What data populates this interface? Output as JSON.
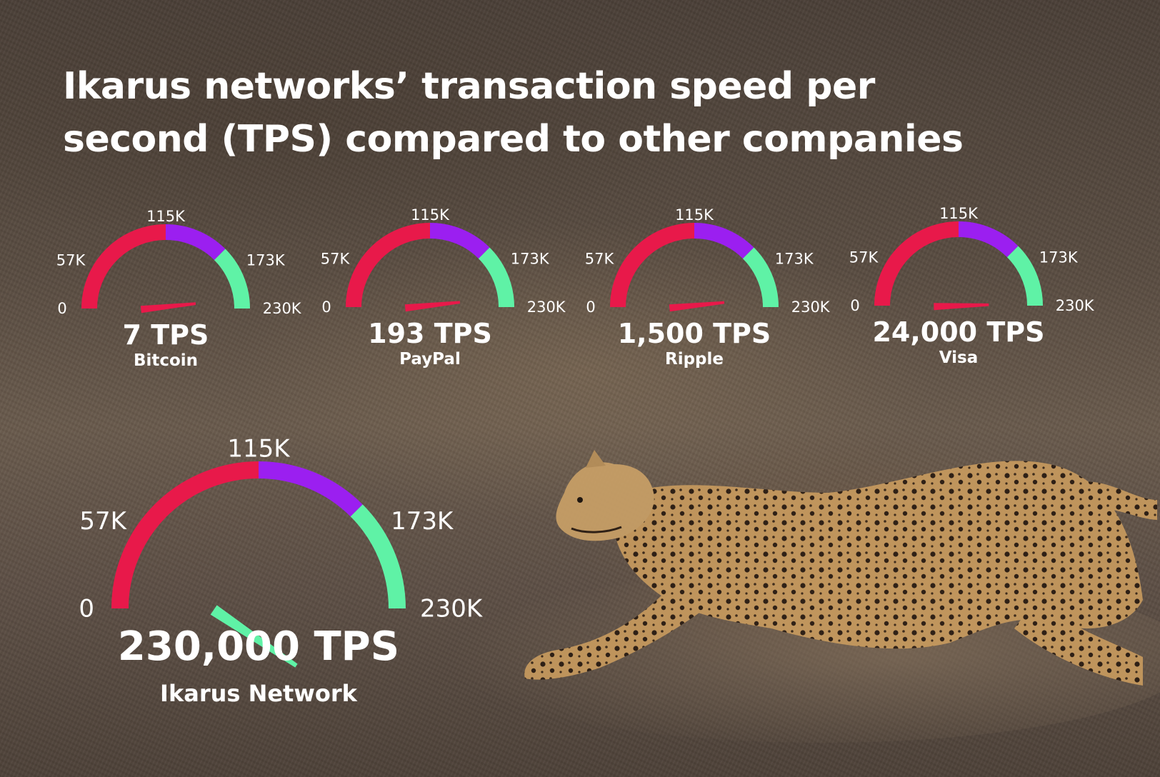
{
  "title_lines": [
    "Ikarus networks’ transaction speed per",
    "second (TPS) compared to other companies"
  ],
  "colors": {
    "red": "#e8194a",
    "purple": "#9b1ff0",
    "green": "#5ff2a6"
  },
  "chart_data": [
    {
      "type": "gauge",
      "name": "Bitcoin",
      "value": 7,
      "value_label": "7 TPS",
      "min": 0,
      "max": 230000,
      "tick_labels": [
        "0",
        "57K",
        "115K",
        "173K",
        "230K"
      ],
      "bands": [
        {
          "from": 0,
          "to": 115000,
          "color": "red"
        },
        {
          "from": 115000,
          "to": 172500,
          "color": "purple"
        },
        {
          "from": 172500,
          "to": 230000,
          "color": "green"
        }
      ]
    },
    {
      "type": "gauge",
      "name": "PayPal",
      "value": 193,
      "value_label": "193 TPS",
      "min": 0,
      "max": 230000,
      "tick_labels": [
        "0",
        "57K",
        "115K",
        "173K",
        "230K"
      ],
      "bands": [
        {
          "from": 0,
          "to": 115000,
          "color": "red"
        },
        {
          "from": 115000,
          "to": 172500,
          "color": "purple"
        },
        {
          "from": 172500,
          "to": 230000,
          "color": "green"
        }
      ]
    },
    {
      "type": "gauge",
      "name": "Ripple",
      "value": 1500,
      "value_label": "1,500 TPS",
      "min": 0,
      "max": 230000,
      "tick_labels": [
        "0",
        "57K",
        "115K",
        "173K",
        "230K"
      ],
      "bands": [
        {
          "from": 0,
          "to": 115000,
          "color": "red"
        },
        {
          "from": 115000,
          "to": 172500,
          "color": "purple"
        },
        {
          "from": 172500,
          "to": 230000,
          "color": "green"
        }
      ]
    },
    {
      "type": "gauge",
      "name": "Visa",
      "value": 24000,
      "value_label": "24,000 TPS",
      "min": 0,
      "max": 230000,
      "tick_labels": [
        "0",
        "57K",
        "115K",
        "173K",
        "230K"
      ],
      "bands": [
        {
          "from": 0,
          "to": 115000,
          "color": "red"
        },
        {
          "from": 115000,
          "to": 172500,
          "color": "purple"
        },
        {
          "from": 172500,
          "to": 230000,
          "color": "green"
        }
      ]
    },
    {
      "type": "gauge",
      "name": "Ikarus Network",
      "value": 230000,
      "value_label": "230,000 TPS",
      "min": 0,
      "max": 230000,
      "tick_labels": [
        "0",
        "57K",
        "115K",
        "173K",
        "230K"
      ],
      "bands": [
        {
          "from": 0,
          "to": 115000,
          "color": "red"
        },
        {
          "from": 115000,
          "to": 172500,
          "color": "purple"
        },
        {
          "from": 172500,
          "to": 230000,
          "color": "green"
        }
      ]
    }
  ]
}
